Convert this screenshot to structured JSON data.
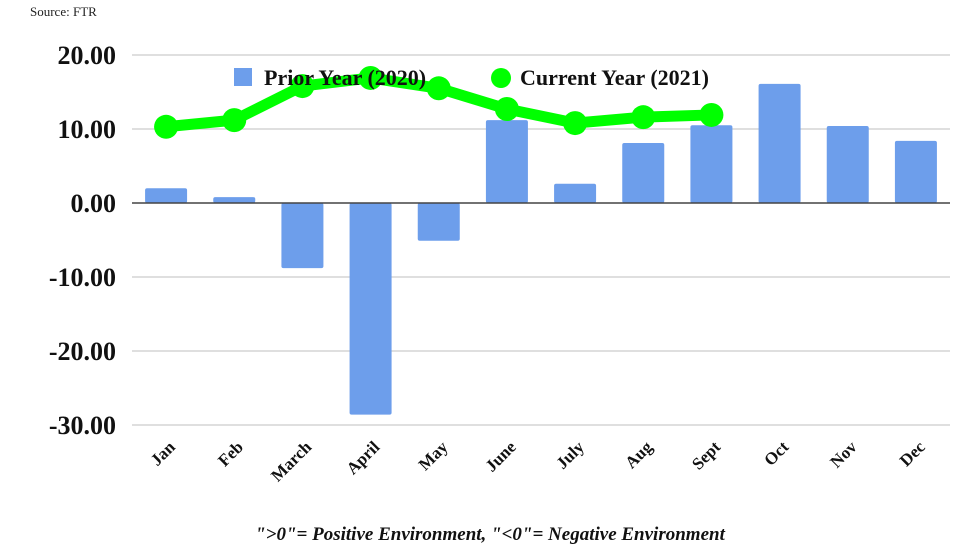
{
  "source": "Source: FTR",
  "footnote": "\">0\"= Positive Environment, \"<0\"= Negative Environment",
  "chart_data": {
    "type": "bar",
    "title": "",
    "xlabel": "",
    "ylabel": "",
    "ylim": [
      -30,
      20
    ],
    "yticks": [
      20,
      10,
      0,
      -10,
      -20,
      -30
    ],
    "ytick_labels": [
      "20.00",
      "10.00",
      "0.00",
      "-10.00",
      "-20.00",
      "-30.00"
    ],
    "grid": true,
    "legend_position": "top-center",
    "categories": [
      "Jan",
      "Feb",
      "March",
      "April",
      "May",
      "June",
      "July",
      "Aug",
      "Sept",
      "Oct",
      "Nov",
      "Dec"
    ],
    "series": [
      {
        "name": "Prior Year (2020)",
        "type": "bar",
        "color": "#6d9eeb",
        "values": [
          2.0,
          0.8,
          -8.8,
          -28.6,
          -5.1,
          11.2,
          2.6,
          8.1,
          10.5,
          16.1,
          10.4,
          8.4
        ]
      },
      {
        "name": "Current Year (2021)",
        "type": "line",
        "color": "#00ff00",
        "values": [
          10.3,
          11.2,
          15.8,
          16.9,
          15.5,
          12.7,
          10.8,
          11.6,
          11.9,
          null,
          null,
          null
        ]
      }
    ]
  }
}
